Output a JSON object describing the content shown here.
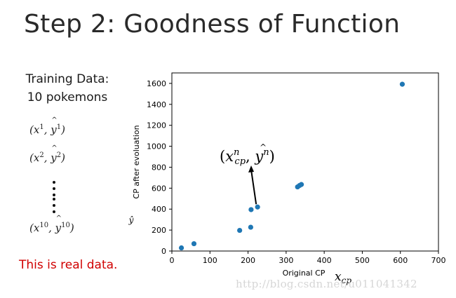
{
  "slide": {
    "title": "Step 2: Goodness of Function",
    "training_heading_1": "Training Data:",
    "training_heading_2": "10 pokemons",
    "samples": [
      {
        "x": "x",
        "sup": "1",
        "y": "y",
        "ysup": "1"
      },
      {
        "x": "x",
        "sup": "2",
        "y": "y",
        "ysup": "2"
      },
      {
        "x": "x",
        "sup": "10",
        "y": "y",
        "ysup": "10"
      }
    ],
    "note": "This is real data.",
    "note_color": "#d00000",
    "watermark": "http://blog.csdn.net/u011041342"
  },
  "chart_data": {
    "type": "scatter",
    "title": "",
    "xlabel": "Original CP",
    "ylabel": "CP after evoluation",
    "y_symbol": "ŷ",
    "x_symbol_base": "x",
    "x_symbol_sub": "cp",
    "xlim": [
      0,
      700
    ],
    "ylim": [
      0,
      1700
    ],
    "xticks": [
      0,
      100,
      200,
      300,
      400,
      500,
      600,
      700
    ],
    "yticks": [
      0,
      200,
      400,
      600,
      800,
      1000,
      1200,
      1400,
      1600
    ],
    "grid": false,
    "marker_color": "#1f77b4",
    "points": [
      {
        "x": 25,
        "y": 30
      },
      {
        "x": 58,
        "y": 70
      },
      {
        "x": 178,
        "y": 197
      },
      {
        "x": 207,
        "y": 227
      },
      {
        "x": 208,
        "y": 395
      },
      {
        "x": 225,
        "y": 420
      },
      {
        "x": 330,
        "y": 612
      },
      {
        "x": 335,
        "y": 625
      },
      {
        "x": 340,
        "y": 635
      },
      {
        "x": 605,
        "y": 1592
      }
    ],
    "annotation": {
      "text_x": "x",
      "text_x_sup": "n",
      "text_x_sub": "cp",
      "text_y": "y",
      "text_y_sup": "n",
      "arrow_from_point": 5
    }
  }
}
